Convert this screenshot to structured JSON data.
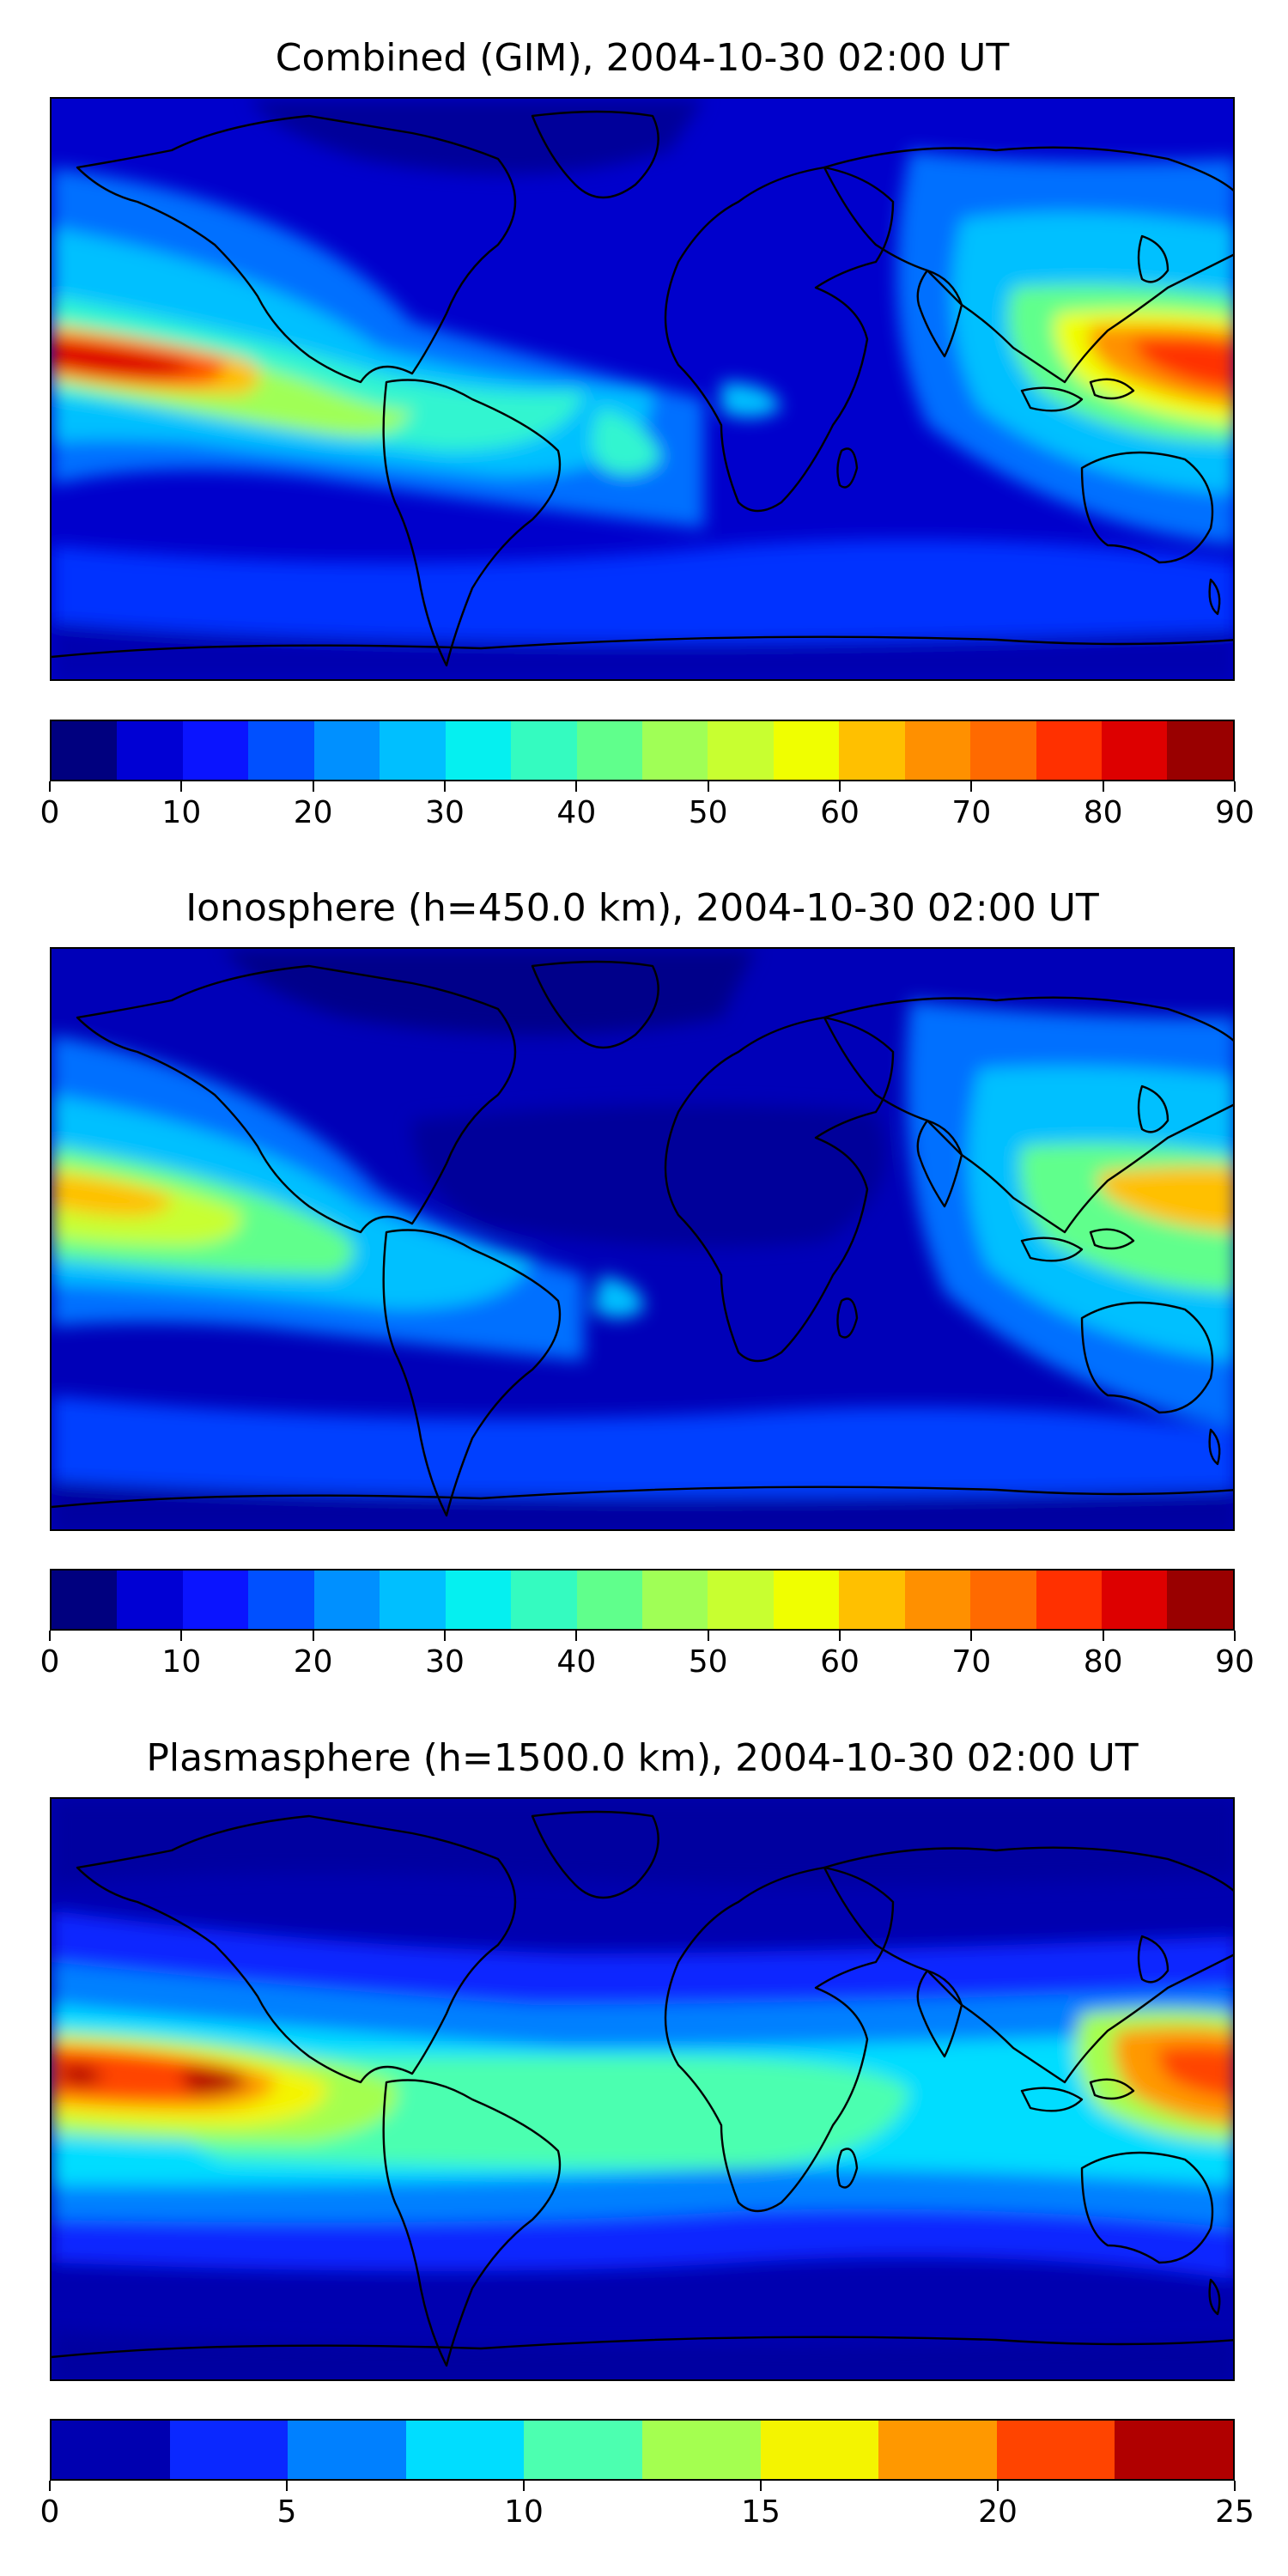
{
  "panels": [
    {
      "title": "Combined (GIM), 2004-10-30 02:00 UT",
      "colorbar": {
        "bounds": [
          0,
          90
        ],
        "step": 5,
        "tick_labels": [
          "0",
          "10",
          "20",
          "30",
          "40",
          "50",
          "60",
          "70",
          "80",
          "90"
        ],
        "colors": [
          "#00007f",
          "#0000d4",
          "#0a14ff",
          "#0050ff",
          "#0090ff",
          "#00bfff",
          "#05f0f0",
          "#34fbc0",
          "#60ff8c",
          "#a0ff56",
          "#c8ff30",
          "#f0ff00",
          "#ffc000",
          "#ff9000",
          "#ff6a00",
          "#ff3000",
          "#dd0000",
          "#990000"
        ]
      }
    },
    {
      "title": "Ionosphere  (h=450.0 km), 2004-10-30 02:00 UT",
      "colorbar": {
        "bounds": [
          0,
          90
        ],
        "step": 5,
        "tick_labels": [
          "0",
          "10",
          "20",
          "30",
          "40",
          "50",
          "60",
          "70",
          "80",
          "90"
        ],
        "colors": [
          "#00007f",
          "#0000d4",
          "#0a14ff",
          "#0050ff",
          "#0090ff",
          "#00bfff",
          "#05f0f0",
          "#34fbc0",
          "#60ff8c",
          "#a0ff56",
          "#c8ff30",
          "#f0ff00",
          "#ffc000",
          "#ff9000",
          "#ff6a00",
          "#ff3000",
          "#dd0000",
          "#990000"
        ]
      }
    },
    {
      "title": "Plasmasphere (h=1500.0 km), 2004-10-30 02:00 UT",
      "colorbar": {
        "bounds": [
          0,
          25
        ],
        "step": 2.5,
        "tick_labels": [
          "0",
          "5",
          "10",
          "15",
          "20",
          "25"
        ],
        "colors": [
          "#0000b0",
          "#0a28ff",
          "#0080ff",
          "#00ddff",
          "#4cffb0",
          "#a4ff50",
          "#f4f400",
          "#ff9800",
          "#ff4400",
          "#b00000"
        ]
      }
    }
  ]
}
